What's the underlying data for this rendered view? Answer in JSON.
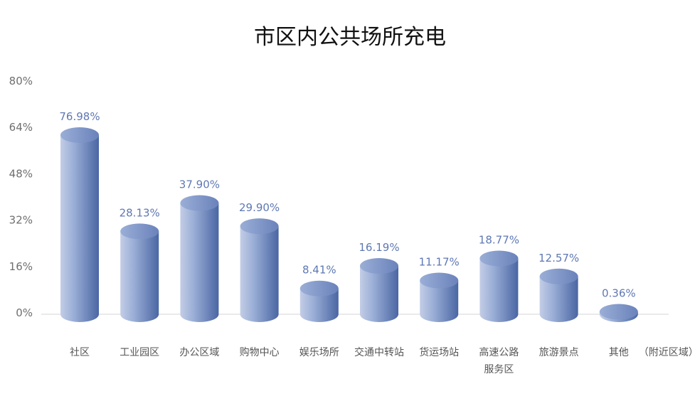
{
  "chart_data": {
    "type": "bar",
    "title": "市区内公共场所充电",
    "xlabel": "",
    "ylabel": "",
    "ylim": [
      0,
      80
    ],
    "yticks": [
      "0%",
      "16%",
      "32%",
      "48%",
      "64%",
      "80%"
    ],
    "ytick_values": [
      0,
      16,
      32,
      48,
      64,
      80
    ],
    "grid": false,
    "legend": "none",
    "categories": [
      [
        "社区"
      ],
      [
        "工业园区"
      ],
      [
        "办公区域"
      ],
      [
        "购物中心"
      ],
      [
        "娱乐场所"
      ],
      [
        "交通中转站"
      ],
      [
        "货运场站"
      ],
      [
        "高速公路",
        "服务区"
      ],
      [
        "旅游景点"
      ],
      [
        "其他",
        "（附近区域）"
      ]
    ],
    "values": [
      76.98,
      28.13,
      37.9,
      29.9,
      8.41,
      16.19,
      11.17,
      18.77,
      12.57,
      0.36
    ],
    "data_labels": [
      "76.98%",
      "28.13%",
      "37.90%",
      "29.90%",
      "8.41%",
      "16.19%",
      "11.17%",
      "18.77%",
      "12.57%",
      "0.36%"
    ],
    "colors": {
      "bar_light": "#c9d2e8",
      "bar_mid": "#8a9fcc",
      "bar_dark": "#4a66a3",
      "top": "#7d92c4",
      "axis": "#d6d6d6"
    }
  }
}
